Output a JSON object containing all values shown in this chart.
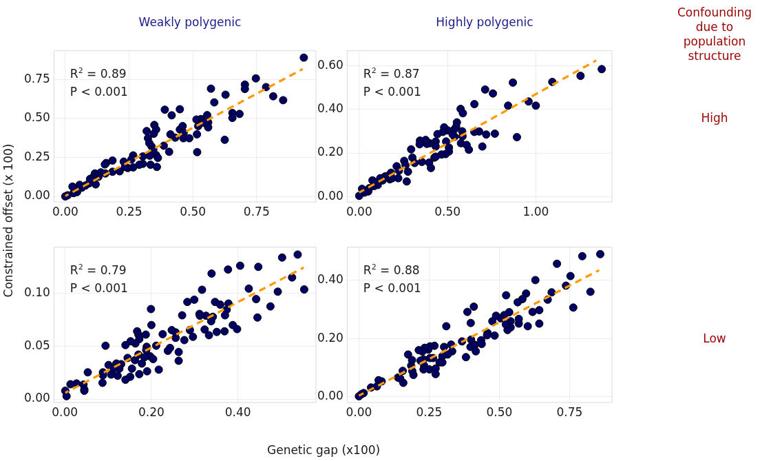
{
  "chart_data": [
    {
      "type": "scatter",
      "title": "Weakly polygenic",
      "ylabel": "Constrained offset (x 100)",
      "annotations": [
        "R$^{2}$ = 0.89",
        "P < 0.001"
      ],
      "marker": "circle",
      "grid": true,
      "xlim": [
        -0.046,
        0.984
      ],
      "ylim": [
        -0.038,
        0.936
      ],
      "xticks": [
        {
          "value": 0,
          "label": "0.00"
        },
        {
          "value": 0.25,
          "label": "0.25"
        },
        {
          "value": 0.5,
          "label": "0.50"
        },
        {
          "value": 0.75,
          "label": "0.75"
        }
      ],
      "yticks": [
        {
          "value": 0,
          "label": "0.00"
        },
        {
          "value": 0.25,
          "label": "0.25"
        },
        {
          "value": 0.5,
          "label": "0.50"
        },
        {
          "value": 0.75,
          "label": "0.75"
        }
      ],
      "series": [
        {
          "type": "scatter",
          "color": "#000066",
          "x": [
            0.935,
            0.747,
            0.704,
            0.704,
            0.787,
            0.815,
            0.854,
            0.571,
            0.628,
            0.584,
            0.683,
            0.655,
            0.655,
            0.625,
            0.556,
            0.532,
            0.514,
            0.521,
            0.56,
            0.56,
            0.546,
            0.516,
            0.517,
            0.449,
            0.39,
            0.417,
            0.449,
            0.46,
            0.464,
            0.463,
            0.486,
            0.431,
            0.412,
            0.386,
            0.407,
            0.349,
            0.356,
            0.347,
            0.319,
            0.324,
            0.329,
            0.338,
            0.345,
            0.356,
            0.363,
            0.331,
            0.334,
            0.359,
            0.304,
            0.304,
            0.29,
            0.266,
            0.259,
            0.266,
            0.245,
            0.229,
            0.234,
            0.213,
            0.185,
            0.185,
            0.16,
            0.155,
            0.157,
            0.139,
            0.13,
            0.116,
            0.108,
            0.106,
            0.119,
            0.093,
            0.079,
            0.065,
            0.056,
            0.037,
            0.046,
            0.032,
            0.009,
            0.0,
            0.028,
            0.097
          ],
          "values": [
            0.89,
            0.757,
            0.717,
            0.689,
            0.701,
            0.642,
            0.617,
            0.691,
            0.652,
            0.603,
            0.529,
            0.535,
            0.503,
            0.363,
            0.521,
            0.496,
            0.493,
            0.451,
            0.475,
            0.443,
            0.471,
            0.398,
            0.284,
            0.559,
            0.556,
            0.52,
            0.429,
            0.451,
            0.409,
            0.373,
            0.373,
            0.377,
            0.398,
            0.325,
            0.286,
            0.458,
            0.429,
            0.402,
            0.419,
            0.373,
            0.342,
            0.321,
            0.3,
            0.265,
            0.247,
            0.261,
            0.203,
            0.189,
            0.256,
            0.209,
            0.203,
            0.263,
            0.237,
            0.186,
            0.182,
            0.223,
            0.189,
            0.161,
            0.23,
            0.158,
            0.214,
            0.205,
            0.147,
            0.154,
            0.126,
            0.147,
            0.122,
            0.105,
            0.077,
            0.084,
            0.07,
            0.056,
            0.074,
            0.049,
            0.028,
            0.021,
            0.007,
            0.0,
            0.063,
            0.112
          ]
        },
        {
          "type": "line",
          "color": "#ff9900",
          "line_style": "dashed",
          "marker": "none",
          "x": [
            0.0,
            0.931
          ],
          "values": [
            0.003,
            0.817
          ]
        }
      ]
    },
    {
      "type": "scatter",
      "title": "Highly polygenic",
      "annotations": [
        "R$^{2}$ = 0.87",
        "P < 0.001"
      ],
      "marker": "circle",
      "grid": true,
      "xlim": [
        -0.07,
        1.433
      ],
      "ylim": [
        -0.027,
        0.672
      ],
      "xticks": [
        {
          "value": 0,
          "label": "0.00"
        },
        {
          "value": 0.5,
          "label": "0.50"
        },
        {
          "value": 1,
          "label": "1.00"
        }
      ],
      "yticks": [
        {
          "value": 0,
          "label": "0.00"
        },
        {
          "value": 0.2,
          "label": "0.20"
        },
        {
          "value": 0.4,
          "label": "0.40"
        },
        {
          "value": 0.6,
          "label": "0.60"
        }
      ],
      "series": [
        {
          "type": "scatter",
          "color": "#000066",
          "x": [
            1.373,
            1.253,
            1.093,
            0.87,
            0.713,
            0.757,
            0.959,
            1.0,
            0.843,
            0.652,
            0.574,
            0.587,
            0.893,
            0.768,
            0.719,
            0.679,
            0.652,
            0.697,
            0.553,
            0.549,
            0.538,
            0.583,
            0.585,
            0.54,
            0.529,
            0.501,
            0.481,
            0.474,
            0.443,
            0.433,
            0.433,
            0.576,
            0.608,
            0.621,
            0.508,
            0.508,
            0.489,
            0.466,
            0.492,
            0.399,
            0.383,
            0.376,
            0.344,
            0.342,
            0.294,
            0.301,
            0.314,
            0.355,
            0.396,
            0.406,
            0.426,
            0.433,
            0.255,
            0.262,
            0.276,
            0.269,
            0.212,
            0.225,
            0.221,
            0.18,
            0.173,
            0.16,
            0.146,
            0.133,
            0.119,
            0.105,
            0.075,
            0.085,
            0.057,
            0.051,
            0.016,
            0.03,
            0.0,
            0.092,
            0.187
          ],
          "values": [
            0.586,
            0.555,
            0.527,
            0.524,
            0.492,
            0.474,
            0.437,
            0.418,
            0.418,
            0.425,
            0.403,
            0.383,
            0.273,
            0.289,
            0.285,
            0.299,
            0.297,
            0.23,
            0.341,
            0.321,
            0.308,
            0.3,
            0.277,
            0.275,
            0.285,
            0.304,
            0.318,
            0.297,
            0.287,
            0.253,
            0.23,
            0.245,
            0.237,
            0.215,
            0.225,
            0.207,
            0.195,
            0.193,
            0.253,
            0.245,
            0.242,
            0.26,
            0.257,
            0.24,
            0.217,
            0.179,
            0.154,
            0.159,
            0.156,
            0.131,
            0.179,
            0.183,
            0.164,
            0.144,
            0.114,
            0.069,
            0.139,
            0.119,
            0.084,
            0.109,
            0.079,
            0.094,
            0.092,
            0.074,
            0.084,
            0.053,
            0.074,
            0.048,
            0.038,
            0.023,
            0.035,
            0.018,
            0.003,
            0.064,
            0.084
          ]
        },
        {
          "type": "line",
          "color": "#ff9900",
          "line_style": "dashed",
          "marker": "none",
          "x": [
            0.0,
            1.342
          ],
          "values": [
            0.018,
            0.626
          ]
        }
      ]
    },
    {
      "type": "scatter",
      "xlabel": "Genetic gap (x100)",
      "annotations": [
        "R$^{2}$ = 0.79",
        "P < 0.001"
      ],
      "marker": "circle",
      "grid": true,
      "xlim": [
        -0.026,
        0.581
      ],
      "ylim": [
        -0.0036,
        0.1436
      ],
      "xticks": [
        {
          "value": 0,
          "label": "0.00"
        },
        {
          "value": 0.2,
          "label": "0.20"
        },
        {
          "value": 0.4,
          "label": "0.40"
        }
      ],
      "yticks": [
        {
          "value": 0,
          "label": "0.00"
        },
        {
          "value": 0.05,
          "label": "0.05"
        },
        {
          "value": 0.1,
          "label": "0.10"
        }
      ],
      "series": [
        {
          "type": "scatter",
          "color": "#000066",
          "x": [
            0.538,
            0.502,
            0.447,
            0.405,
            0.377,
            0.339,
            0.525,
            0.553,
            0.492,
            0.425,
            0.442,
            0.475,
            0.445,
            0.388,
            0.398,
            0.378,
            0.374,
            0.37,
            0.369,
            0.351,
            0.347,
            0.359,
            0.342,
            0.338,
            0.326,
            0.311,
            0.312,
            0.317,
            0.299,
            0.283,
            0.271,
            0.323,
            0.333,
            0.289,
            0.296,
            0.276,
            0.256,
            0.256,
            0.247,
            0.226,
            0.263,
            0.263,
            0.243,
            0.238,
            0.211,
            0.2,
            0.199,
            0.187,
            0.189,
            0.188,
            0.197,
            0.204,
            0.184,
            0.19,
            0.217,
            0.167,
            0.17,
            0.172,
            0.163,
            0.152,
            0.14,
            0.17,
            0.162,
            0.178,
            0.155,
            0.172,
            0.151,
            0.14,
            0.094,
            0.13,
            0.119,
            0.126,
            0.112,
            0.101,
            0.107,
            0.122,
            0.088,
            0.088,
            0.087,
            0.053,
            0.043,
            0.045,
            0.045,
            0.027,
            0.013,
            0.001,
            0.004,
            0.145
          ],
          "values": [
            0.1363,
            0.1335,
            0.1247,
            0.1258,
            0.1222,
            0.1184,
            0.1147,
            0.1034,
            0.1013,
            0.1042,
            0.0943,
            0.0874,
            0.0769,
            0.0698,
            0.066,
            0.0901,
            0.0843,
            0.079,
            0.0639,
            0.0633,
            0.0916,
            0.0891,
            0.0776,
            0.0734,
            0.0786,
            0.0803,
            0.0786,
            0.1031,
            0.0937,
            0.0916,
            0.079,
            0.0656,
            0.0602,
            0.065,
            0.0587,
            0.0556,
            0.0577,
            0.0629,
            0.065,
            0.0612,
            0.0444,
            0.0361,
            0.0482,
            0.0455,
            0.0503,
            0.0698,
            0.0849,
            0.0608,
            0.0493,
            0.0461,
            0.0403,
            0.0377,
            0.0394,
            0.0262,
            0.0277,
            0.0639,
            0.0608,
            0.0566,
            0.0524,
            0.0545,
            0.0509,
            0.0419,
            0.0367,
            0.0335,
            0.0287,
            0.0235,
            0.021,
            0.0182,
            0.0503,
            0.0329,
            0.0335,
            0.0287,
            0.0283,
            0.0321,
            0.0231,
            0.022,
            0.0252,
            0.0224,
            0.0153,
            0.0252,
            0.0136,
            0.009,
            0.0078,
            0.0147,
            0.014,
            0.0078,
            0.0027,
            0.0388
          ]
        },
        {
          "type": "line",
          "color": "#ff9900",
          "line_style": "dashed",
          "marker": "none",
          "x": [
            0.001,
            0.552
          ],
          "values": [
            0.0059,
            0.1241
          ]
        }
      ]
    },
    {
      "type": "scatter",
      "annotations": [
        "R$^{2}$ = 0.88",
        "P < 0.001"
      ],
      "marker": "circle",
      "grid": true,
      "xlim": [
        -0.043,
        0.902
      ],
      "ylim": [
        -0.0206,
        0.514
      ],
      "xticks": [
        {
          "value": 0,
          "label": "0.00"
        },
        {
          "value": 0.25,
          "label": "0.25"
        },
        {
          "value": 0.5,
          "label": "0.50"
        },
        {
          "value": 0.75,
          "label": "0.75"
        }
      ],
      "yticks": [
        {
          "value": 0,
          "label": "0.00"
        },
        {
          "value": 0.2,
          "label": "0.20"
        },
        {
          "value": 0.4,
          "label": "0.40"
        }
      ],
      "series": [
        {
          "type": "scatter",
          "color": "#000066",
          "x": [
            0.859,
            0.795,
            0.705,
            0.628,
            0.753,
            0.737,
            0.824,
            0.763,
            0.686,
            0.672,
            0.595,
            0.582,
            0.565,
            0.618,
            0.642,
            0.642,
            0.601,
            0.569,
            0.569,
            0.524,
            0.535,
            0.517,
            0.505,
            0.488,
            0.475,
            0.54,
            0.54,
            0.529,
            0.523,
            0.483,
            0.458,
            0.456,
            0.409,
            0.386,
            0.398,
            0.399,
            0.397,
            0.413,
            0.416,
            0.435,
            0.437,
            0.367,
            0.381,
            0.311,
            0.328,
            0.332,
            0.316,
            0.303,
            0.297,
            0.287,
            0.297,
            0.269,
            0.253,
            0.247,
            0.234,
            0.226,
            0.213,
            0.264,
            0.253,
            0.23,
            0.219,
            0.232,
            0.23,
            0.251,
            0.273,
            0.273,
            0.175,
            0.189,
            0.186,
            0.19,
            0.194,
            0.156,
            0.158,
            0.139,
            0.147,
            0.081,
            0.07,
            0.064,
            0.043,
            0.017,
            0.009,
            0.0
          ],
          "values": [
            0.489,
            0.482,
            0.456,
            0.4,
            0.414,
            0.381,
            0.36,
            0.306,
            0.358,
            0.333,
            0.354,
            0.335,
            0.324,
            0.291,
            0.297,
            0.251,
            0.242,
            0.251,
            0.267,
            0.348,
            0.29,
            0.28,
            0.269,
            0.278,
            0.259,
            0.259,
            0.238,
            0.229,
            0.248,
            0.21,
            0.219,
            0.211,
            0.309,
            0.291,
            0.253,
            0.196,
            0.171,
            0.178,
            0.156,
            0.194,
            0.181,
            0.19,
            0.136,
            0.242,
            0.179,
            0.156,
            0.145,
            0.171,
            0.139,
            0.118,
            0.118,
            0.175,
            0.173,
            0.162,
            0.168,
            0.155,
            0.16,
            0.133,
            0.133,
            0.128,
            0.124,
            0.107,
            0.094,
            0.094,
            0.097,
            0.078,
            0.145,
            0.126,
            0.107,
            0.088,
            0.075,
            0.089,
            0.048,
            0.066,
            0.063,
            0.053,
            0.057,
            0.036,
            0.032,
            0.013,
            0.009,
            0.002
          ]
        },
        {
          "type": "line",
          "color": "#ff9900",
          "line_style": "dashed",
          "marker": "none",
          "x": [
            0.0,
            0.855
          ],
          "values": [
            0.004,
            0.434
          ]
        }
      ]
    },
    {
      "type": "other",
      "title": "Confounding due to population structure",
      "annotations": [
        "High",
        "Low"
      ]
    }
  ]
}
